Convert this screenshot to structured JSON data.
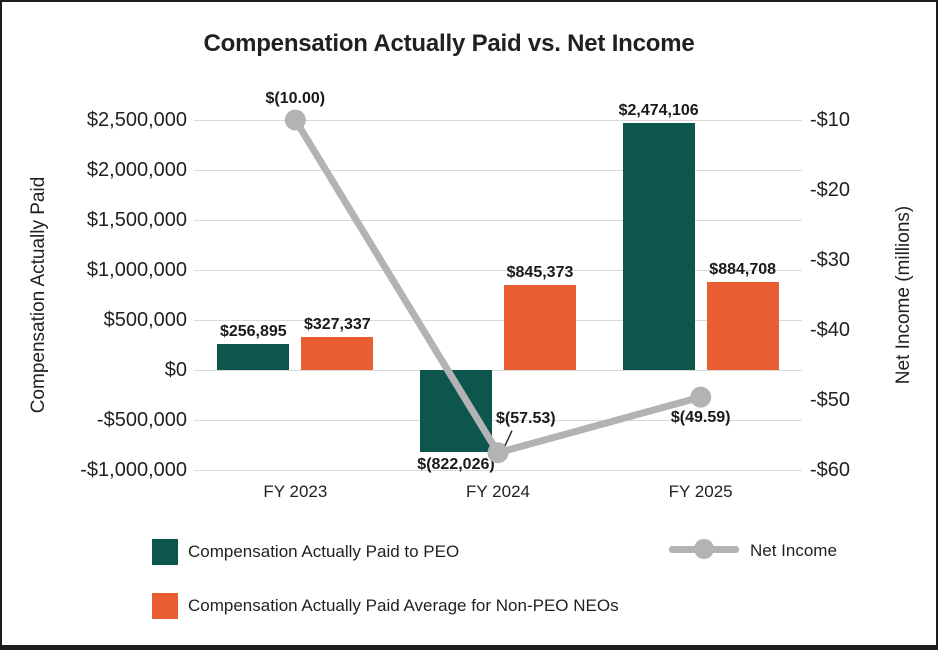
{
  "title": "Compensation Actually Paid vs. Net Income",
  "chart_data": {
    "type": "combo: grouped bar + line",
    "categories": [
      "FY 2023",
      "FY 2024",
      "FY 2025"
    ],
    "series": [
      {
        "name": "Compensation Actually Paid to PEO",
        "type": "bar",
        "axis": "left",
        "color": "#0d564e",
        "values": [
          256895,
          -822026,
          2474106
        ],
        "labels": [
          "$256,895",
          "$(822,026)",
          "$2,474,106"
        ]
      },
      {
        "name": "Compensation Actually Paid Average for Non-PEO NEOs",
        "type": "bar",
        "axis": "left",
        "color": "#e85d32",
        "values": [
          327337,
          845373,
          884708
        ],
        "labels": [
          "$327,337",
          "$845,373",
          "$884,708"
        ]
      },
      {
        "name": "Net Income",
        "type": "line",
        "axis": "right",
        "color": "#b3b3b3",
        "values": [
          -10.0,
          -57.53,
          -49.59
        ],
        "labels": [
          "$(10.00)",
          "$(57.53)",
          "$(49.59)"
        ],
        "label_placement": [
          "above",
          "callout-above-right",
          "below"
        ]
      }
    ],
    "left_axis": {
      "title": "Compensation Actually Paid",
      "max": 2500000,
      "min": -1000000,
      "tick_step": 500000,
      "tick_labels": [
        "$2,500,000",
        "$2,000,000",
        "$1,500,000",
        "$1,000,000",
        "$500,000",
        "$0",
        "-$500,000",
        "-$1,000,000"
      ]
    },
    "right_axis": {
      "title": "Net Income (millions)",
      "max": -10,
      "min": -60,
      "tick_step": 10,
      "tick_labels": [
        "-$10",
        "-$20",
        "-$30",
        "-$40",
        "-$50",
        "-$60"
      ]
    },
    "grid": true,
    "legend_position": "bottom"
  },
  "colors": {
    "teal": "#0d564e",
    "orange": "#e85d32",
    "line_gray": "#b3b3b3",
    "gridline": "#d9d9d9",
    "text": "#231f20",
    "border": "#1d1d20"
  }
}
